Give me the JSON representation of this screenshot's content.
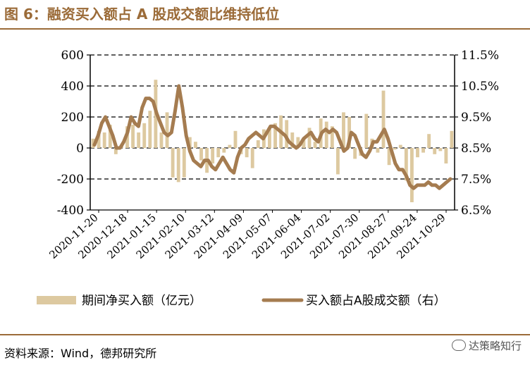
{
  "title": "图 6：融资买入额占 A 股成交额比维持低位",
  "source": "资料来源：Wind，德邦研究所",
  "watermark": "达策略知行",
  "colors": {
    "accent": "#9b6b38",
    "bar": "#ddc9a0",
    "line": "#a57c50"
  },
  "chart_data": {
    "type": "bar+line",
    "x_tick_labels": [
      "2020-11-20",
      "2020-12-18",
      "2021-01-15",
      "2021-02-10",
      "2021-03-12",
      "2021-04-09",
      "2021-05-07",
      "2021-06-04",
      "2021-07-02",
      "2021-07-30",
      "2021-08-27",
      "2021-09-24",
      "2021-10-29"
    ],
    "y_left": {
      "ticks": [
        "600",
        "400",
        "200",
        "0",
        "-200",
        "-400"
      ],
      "min": -400,
      "max": 600
    },
    "y_right": {
      "ticks": [
        "11.5%",
        "10.5%",
        "9.5%",
        "8.5%",
        "7.5%",
        "6.5%"
      ],
      "min": 6.5,
      "max": 11.5
    },
    "grid": "dashed horizontal",
    "legend_position": "bottom",
    "series": [
      {
        "name": "期间净买入额（亿元）",
        "type": "bar",
        "axis": "left",
        "values": [
          60,
          110,
          100,
          150,
          -40,
          20,
          140,
          150,
          100,
          160,
          240,
          440,
          100,
          230,
          -190,
          -220,
          -190,
          70,
          40,
          -80,
          -160,
          -100,
          -60,
          -30,
          20,
          110,
          -40,
          -60,
          -130,
          50,
          120,
          130,
          160,
          210,
          180,
          100,
          70,
          60,
          130,
          40,
          190,
          170,
          140,
          -170,
          230,
          200,
          -70,
          -50,
          220,
          60,
          -30,
          370,
          -110,
          -10,
          20,
          -210,
          -350,
          -60,
          -30,
          90,
          -40,
          -20,
          -100,
          110
        ]
      },
      {
        "name": "买入额占A股成交额（右）",
        "type": "line",
        "axis": "right",
        "values": [
          8.6,
          8.9,
          9.3,
          9.5,
          9.2,
          8.9,
          8.5,
          8.5,
          8.7,
          9.0,
          9.5,
          9.3,
          9.2,
          9.8,
          10.1,
          10.1,
          10.0,
          9.6,
          9.3,
          9.0,
          8.9,
          9.0,
          9.7,
          10.5,
          9.8,
          8.9,
          8.4,
          8.1,
          8.0,
          7.9,
          8.1,
          8.1,
          7.9,
          7.8,
          8.0,
          8.2,
          8.0,
          7.8,
          7.7,
          8.2,
          8.5,
          8.6,
          8.8,
          8.9,
          9.0,
          8.9,
          8.8,
          9.0,
          9.2,
          9.2,
          9.1,
          9.0,
          8.9,
          8.7,
          8.6,
          8.5,
          8.6,
          8.8,
          8.9,
          9.0,
          8.8,
          8.7,
          9.0,
          9.1,
          9.0,
          9.1,
          9.0,
          8.7,
          8.4,
          8.5,
          9.0,
          8.9,
          8.6,
          8.3,
          8.2,
          8.4,
          8.7,
          8.7,
          8.9,
          9.1,
          8.8,
          8.4,
          8.0,
          7.8,
          7.8,
          7.6,
          7.3,
          7.2,
          7.3,
          7.3,
          7.3,
          7.4,
          7.3,
          7.3,
          7.2,
          7.3,
          7.4,
          7.5
        ]
      }
    ]
  }
}
